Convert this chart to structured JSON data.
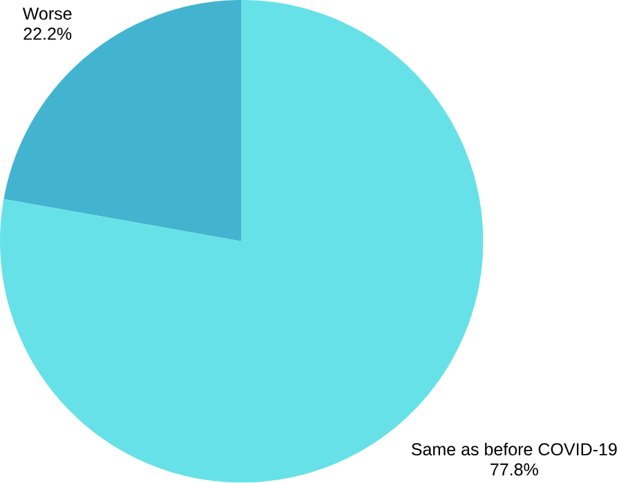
{
  "chart_data": {
    "type": "pie",
    "categories": [
      "Worse",
      "Same as before COVID-19"
    ],
    "values": [
      22.2,
      77.8
    ],
    "value_labels": [
      "22.2%",
      "77.8%"
    ],
    "colors": [
      "#42b4d0",
      "#67e1e8"
    ]
  }
}
